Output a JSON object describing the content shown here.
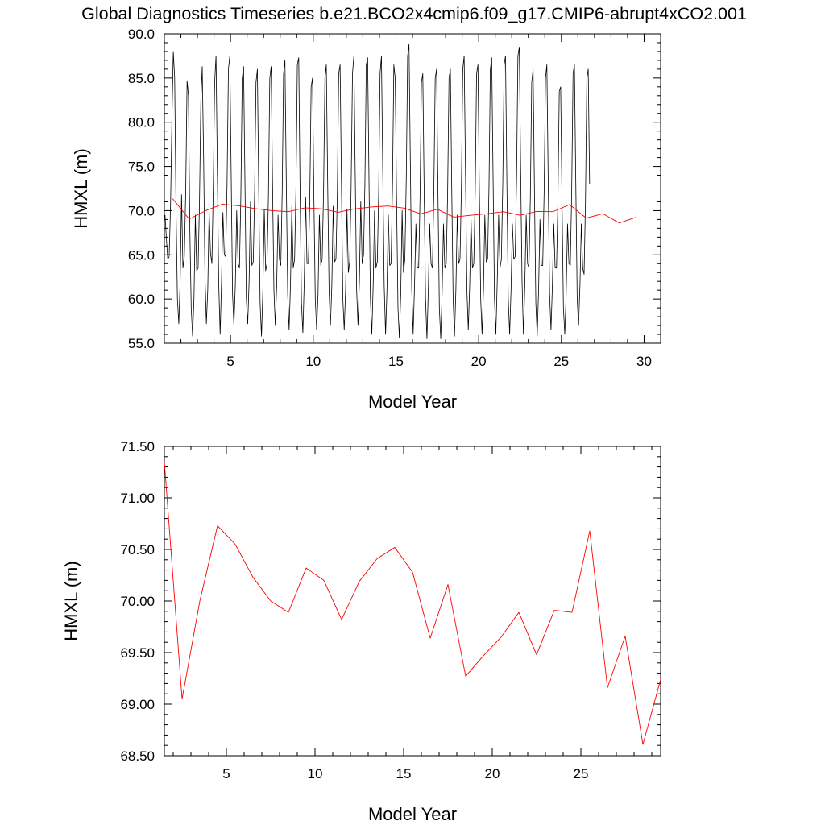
{
  "figure": {
    "title": "Global Diagnostics Timeseries b.e21.BCO2x4cmip6.f09_g17.CMIP6-abrupt4xCO2.001"
  },
  "chart_data": [
    {
      "type": "line",
      "xlabel": "Model Year",
      "ylabel": "HMXL (m)",
      "xlim": [
        1.0,
        31.0
      ],
      "ylim": [
        55.0,
        90.0
      ],
      "xticks": [
        5,
        10,
        15,
        20,
        25,
        30
      ],
      "xtick_labels": [
        "5",
        "10",
        "15",
        "20",
        "25",
        "30"
      ],
      "yticks": [
        55,
        60,
        65,
        70,
        75,
        80,
        85,
        90
      ],
      "ytick_labels": [
        "55.0",
        "60.0",
        "65.0",
        "70.0",
        "75.0",
        "80.0",
        "85.0",
        "90.0"
      ],
      "grid": false,
      "series": [
        {
          "kind": "monthly",
          "color": "#000000",
          "x_start": 1.04,
          "x_step": 0.08333,
          "values": [
            69.5,
            66.8,
            64.5,
            64.8,
            70.5,
            80.2,
            88.0,
            85.0,
            70.0,
            60.0,
            57.2,
            62.0,
            71.8,
            63.5,
            64.8,
            72.0,
            84.7,
            83.0,
            68.0,
            59.0,
            55.8,
            60.0,
            69.5,
            63.2,
            63.5,
            71.0,
            82.5,
            86.3,
            76.0,
            62.5,
            57.2,
            61.0,
            70.0,
            65.2,
            64.0,
            72.5,
            84.5,
            87.5,
            74.0,
            61.5,
            56.0,
            62.0,
            69.8,
            65.0,
            64.8,
            73.0,
            86.0,
            87.5,
            74.0,
            60.5,
            57.0,
            61.5,
            70.0,
            64.0,
            63.5,
            71.5,
            85.0,
            86.3,
            73.0,
            60.0,
            57.2,
            62.0,
            71.0,
            63.8,
            64.2,
            72.0,
            84.5,
            86.0,
            72.0,
            59.5,
            55.8,
            61.0,
            70.2,
            63.2,
            64.0,
            71.5,
            85.0,
            86.3,
            73.0,
            61.0,
            57.0,
            61.5,
            69.5,
            64.5,
            63.8,
            72.0,
            85.5,
            87.0,
            73.0,
            60.5,
            56.5,
            61.5,
            70.5,
            63.5,
            64.5,
            72.5,
            86.5,
            87.3,
            72.0,
            59.5,
            56.2,
            62.0,
            71.5,
            64.0,
            64.0,
            71.0,
            84.0,
            85.0,
            71.5,
            60.0,
            56.5,
            60.5,
            69.5,
            63.8,
            64.5,
            72.0,
            85.0,
            86.5,
            73.0,
            61.0,
            57.0,
            61.5,
            70.5,
            64.2,
            64.5,
            72.0,
            85.5,
            86.5,
            73.0,
            60.0,
            56.5,
            61.0,
            70.2,
            63.0,
            64.2,
            72.5,
            85.5,
            87.5,
            74.0,
            61.0,
            57.0,
            62.0,
            71.0,
            64.0,
            65.0,
            73.0,
            86.5,
            87.3,
            73.0,
            60.0,
            56.0,
            61.5,
            70.0,
            63.5,
            64.2,
            72.0,
            85.5,
            87.5,
            74.0,
            61.5,
            56.0,
            61.0,
            69.5,
            63.8,
            64.0,
            72.5,
            86.5,
            85.0,
            71.0,
            59.0,
            55.6,
            60.5,
            70.0,
            63.0,
            64.5,
            73.5,
            87.5,
            88.8,
            75.0,
            61.0,
            56.0,
            61.5,
            68.5,
            63.5,
            63.5,
            71.5,
            84.5,
            85.5,
            72.0,
            60.0,
            55.5,
            61.0,
            68.5,
            64.0,
            63.5,
            72.0,
            85.0,
            86.0,
            72.0,
            59.0,
            55.5,
            60.5,
            68.5,
            63.5,
            64.0,
            72.0,
            85.0,
            86.0,
            72.5,
            60.0,
            55.8,
            61.0,
            69.5,
            64.0,
            64.5,
            72.5,
            86.0,
            87.5,
            74.0,
            61.0,
            56.5,
            61.5,
            69.0,
            63.5,
            64.0,
            72.0,
            85.5,
            86.5,
            72.5,
            60.0,
            56.0,
            61.0,
            69.5,
            64.2,
            64.5,
            72.5,
            86.0,
            87.3,
            73.5,
            60.0,
            56.0,
            62.0,
            69.5,
            63.5,
            64.5,
            73.0,
            86.5,
            87.5,
            73.0,
            60.0,
            56.0,
            61.0,
            68.5,
            64.5,
            64.8,
            73.5,
            87.5,
            88.5,
            74.5,
            62.0,
            56.0,
            61.5,
            69.5,
            64.0,
            63.5,
            71.5,
            84.5,
            86.0,
            72.0,
            59.5,
            55.8,
            61.0,
            69.0,
            63.8,
            63.8,
            72.0,
            85.0,
            86.5,
            73.0,
            60.5,
            56.5,
            61.5,
            68.5,
            63.5,
            63.5,
            71.0,
            83.5,
            84.0,
            71.0,
            59.0,
            56.0,
            60.5,
            68.5,
            64.0,
            63.8,
            72.0,
            85.5,
            86.5,
            73.0,
            60.0,
            57.0,
            61.5,
            68.5,
            63.5,
            62.8,
            71.0,
            85.0,
            86.0,
            73.0
          ]
        },
        {
          "kind": "annual",
          "color": "#ff0000",
          "x": [
            1.5,
            2.5,
            3.5,
            4.5,
            5.5,
            6.5,
            7.5,
            8.5,
            9.5,
            10.5,
            11.5,
            12.5,
            13.5,
            14.5,
            15.5,
            16.5,
            17.5,
            18.5,
            19.5,
            20.5,
            21.5,
            22.5,
            23.5,
            24.5,
            25.5,
            26.5,
            27.5,
            28.5,
            29.5
          ],
          "values": [
            71.35,
            69.05,
            70.0,
            70.73,
            70.55,
            70.23,
            70.0,
            69.89,
            70.32,
            70.2,
            69.82,
            70.19,
            70.41,
            70.52,
            70.28,
            69.64,
            70.16,
            69.27,
            69.47,
            69.65,
            69.89,
            69.48,
            69.91,
            69.89,
            70.68,
            69.16,
            69.66,
            68.61,
            69.24
          ]
        }
      ]
    },
    {
      "type": "line",
      "xlabel": "Model Year",
      "ylabel": "HMXL (m)",
      "xlim": [
        1.5,
        29.5
      ],
      "ylim": [
        68.5,
        71.5
      ],
      "xticks": [
        5,
        10,
        15,
        20,
        25
      ],
      "xtick_labels": [
        "5",
        "10",
        "15",
        "20",
        "25"
      ],
      "yticks": [
        68.5,
        69.0,
        69.5,
        70.0,
        70.5,
        71.0,
        71.5
      ],
      "ytick_labels": [
        "68.50",
        "69.00",
        "69.50",
        "70.00",
        "70.50",
        "71.00",
        "71.50"
      ],
      "grid": false,
      "series": [
        {
          "kind": "annual",
          "color": "#ff0000",
          "x": [
            1.5,
            2.5,
            3.5,
            4.5,
            5.5,
            6.5,
            7.5,
            8.5,
            9.5,
            10.5,
            11.5,
            12.5,
            13.5,
            14.5,
            15.5,
            16.5,
            17.5,
            18.5,
            19.5,
            20.5,
            21.5,
            22.5,
            23.5,
            24.5,
            25.5,
            26.5,
            27.5,
            28.5,
            29.5
          ],
          "values": [
            71.35,
            69.05,
            70.0,
            70.73,
            70.55,
            70.23,
            70.0,
            69.89,
            70.32,
            70.2,
            69.82,
            70.19,
            70.41,
            70.52,
            70.28,
            69.64,
            70.16,
            69.27,
            69.47,
            69.65,
            69.89,
            69.48,
            69.91,
            69.89,
            70.68,
            69.16,
            69.66,
            68.61,
            69.24
          ]
        }
      ]
    }
  ]
}
